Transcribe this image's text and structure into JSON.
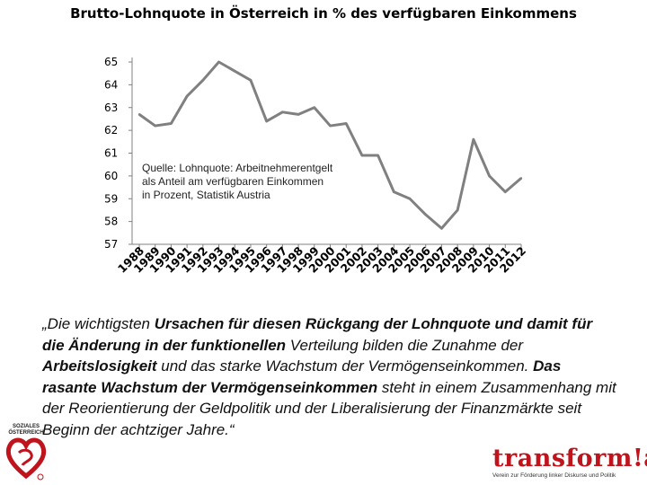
{
  "chart_data": {
    "type": "line",
    "title": "Brutto-Lohnquote in Österreich in % des verfügbaren Einkommens",
    "x": [
      "1988",
      "1989",
      "1990",
      "1991",
      "1992",
      "1993",
      "1994",
      "1995",
      "1996",
      "1997",
      "1998",
      "1999",
      "2000",
      "2001",
      "2002",
      "2003",
      "2004",
      "2005",
      "2006",
      "2007",
      "2008",
      "2009",
      "2010",
      "2011",
      "2012"
    ],
    "values": [
      62.7,
      62.2,
      62.3,
      63.5,
      64.2,
      65.0,
      64.6,
      64.2,
      62.4,
      62.8,
      62.7,
      63.0,
      62.2,
      62.3,
      60.9,
      60.9,
      59.3,
      59.0,
      58.3,
      57.7,
      58.5,
      61.6,
      60.0,
      59.3,
      59.9
    ],
    "yticks": [
      "57",
      "58",
      "59",
      "60",
      "61",
      "62",
      "63",
      "64",
      "65"
    ],
    "ylim": [
      57,
      65.3
    ],
    "series_color": "#808080",
    "grid": false,
    "annotation": "Quelle: Lohnquote: Arbeitnehmerentgelt als Anteil am verfügbaren Einkommen in Prozent, Statistik Austria"
  },
  "quote": {
    "p1": "„Die wichtigsten ",
    "b1": "Ursachen für diesen Rückgang der Lohnquote und damit für die Änderung in der funktionellen",
    "p2": " Verteilung bilden die Zunahme der ",
    "b2": "Arbeitslosigkeit",
    "p3": " und das starke Wachstum der Vermögenseinkommen. ",
    "b3": "Das rasante Wachstum der Vermögenseinkommen",
    "p4": " steht in einem Zusammenhang mit der Reorientierung der Geldpolitik und der Liberalisierung der Finanzmärkte seit Beginn der achtziger Jahre.“"
  },
  "logo_left": {
    "text": "SOZIALES ÖSTERREICH",
    "color": "#c0141d"
  },
  "logo_right": {
    "brand": "transform!at",
    "subtitle": "Verein zur Förderung linker Diskurse und Politik",
    "color": "#c0141d"
  }
}
